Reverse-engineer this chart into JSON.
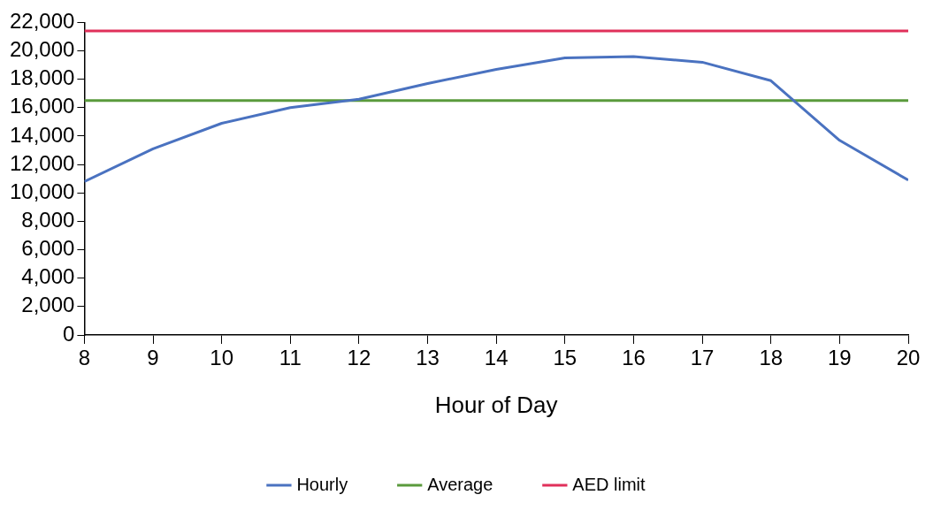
{
  "chart_data": {
    "type": "line",
    "xlabel": "Hour of Day",
    "x": [
      8,
      9,
      10,
      11,
      12,
      13,
      14,
      15,
      16,
      17,
      18,
      19,
      20
    ],
    "series": [
      {
        "name": "Hourly",
        "color": "#4a72c0",
        "values": [
          10800,
          13100,
          14900,
          16000,
          16600,
          17700,
          18700,
          19500,
          19600,
          19200,
          17900,
          13700,
          10900
        ]
      },
      {
        "name": "Average",
        "color": "#5a9a3c",
        "values": [
          16500,
          16500,
          16500,
          16500,
          16500,
          16500,
          16500,
          16500,
          16500,
          16500,
          16500,
          16500,
          16500
        ]
      },
      {
        "name": "AED limit",
        "color": "#e0305a",
        "values": [
          21400,
          21400,
          21400,
          21400,
          21400,
          21400,
          21400,
          21400,
          21400,
          21400,
          21400,
          21400,
          21400
        ]
      }
    ],
    "xlim": [
      8,
      20
    ],
    "xticks": [
      8,
      9,
      10,
      11,
      12,
      13,
      14,
      15,
      16,
      17,
      18,
      19,
      20
    ],
    "ylim": [
      0,
      22000
    ],
    "yticks": [
      0,
      {
        "value": 2000,
        "label": "2,000"
      },
      {
        "value": 4000,
        "label": "4,000"
      },
      {
        "value": 6000,
        "label": "6,000"
      },
      {
        "value": 8000,
        "label": "8,000"
      },
      {
        "value": 10000,
        "label": "10,000"
      },
      {
        "value": 12000,
        "label": "12,000"
      },
      {
        "value": 14000,
        "label": "14,000"
      },
      {
        "value": 16000,
        "label": "16,000"
      },
      {
        "value": 18000,
        "label": "18,000"
      },
      {
        "value": 20000,
        "label": "20,000"
      },
      {
        "value": 22000,
        "label": "22,000"
      }
    ],
    "grid": false,
    "legend": "bottom",
    "marker": "none",
    "line_style": "solid"
  }
}
